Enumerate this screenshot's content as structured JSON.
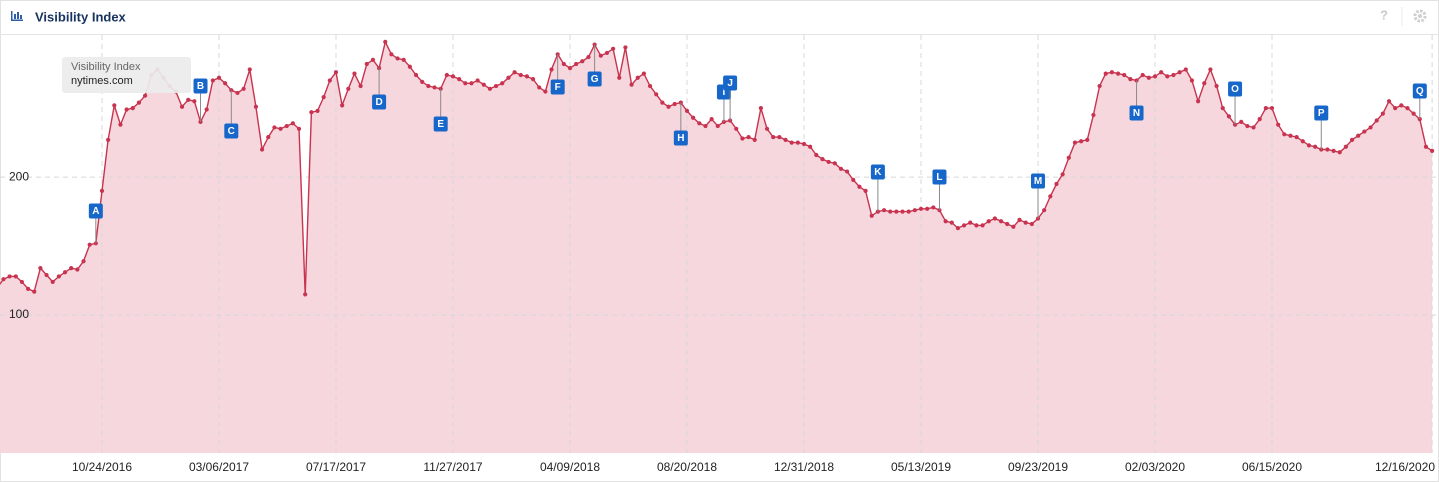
{
  "toolbar": {
    "help": "?"
  },
  "chart_data": {
    "type": "line",
    "title": "Visibility Index",
    "categories": [
      null,
      null,
      null,
      null,
      null,
      null,
      null,
      null,
      null,
      null,
      null,
      null,
      null,
      null,
      null,
      null,
      null,
      "10/24/2016",
      null,
      null,
      null,
      null,
      null,
      null,
      null,
      null,
      null,
      null,
      null,
      null,
      null,
      null,
      null,
      null,
      null,
      null,
      "03/06/2017",
      null,
      null,
      null,
      null,
      null,
      null,
      null,
      null,
      null,
      null,
      null,
      null,
      null,
      null,
      null,
      null,
      null,
      null,
      "07/17/2017",
      null,
      null,
      null,
      null,
      null,
      null,
      null,
      null,
      null,
      null,
      null,
      null,
      null,
      null,
      null,
      null,
      null,
      null,
      "11/27/2017",
      null,
      null,
      null,
      null,
      null,
      null,
      null,
      null,
      null,
      null,
      null,
      null,
      null,
      null,
      null,
      null,
      null,
      null,
      "04/09/2018",
      null,
      null,
      null,
      null,
      null,
      null,
      null,
      null,
      null,
      null,
      null,
      null,
      null,
      null,
      null,
      null,
      null,
      null,
      "08/20/2018",
      null,
      null,
      null,
      null,
      null,
      null,
      null,
      null,
      null,
      null,
      null,
      null,
      null,
      null,
      null,
      null,
      null,
      null,
      "12/31/2018",
      null,
      null,
      null,
      null,
      null,
      null,
      null,
      null,
      null,
      null,
      null,
      null,
      null,
      null,
      null,
      null,
      null,
      null,
      "05/13/2019",
      null,
      null,
      null,
      null,
      null,
      null,
      null,
      null,
      null,
      null,
      null,
      null,
      null,
      null,
      null,
      null,
      null,
      null,
      "09/23/2019",
      null,
      null,
      null,
      null,
      null,
      null,
      null,
      null,
      null,
      null,
      null,
      null,
      null,
      null,
      null,
      null,
      null,
      null,
      "02/03/2020",
      null,
      null,
      null,
      null,
      null,
      null,
      null,
      null,
      null,
      null,
      null,
      null,
      null,
      null,
      null,
      null,
      null,
      null,
      "06/15/2020",
      null,
      null,
      null,
      null,
      null,
      null,
      null,
      null,
      null,
      null,
      null,
      null,
      null,
      null,
      null,
      null,
      null,
      null,
      null,
      null,
      null,
      null,
      null,
      null,
      null,
      "12/16/2020"
    ],
    "series": [
      {
        "name": "nytimes.com",
        "color": "#c8334f",
        "fill": "#f5d7dd",
        "values": [
          120,
          126,
          128,
          128,
          124,
          119,
          117,
          134,
          129,
          124,
          128,
          131,
          134,
          133,
          139,
          151,
          152,
          190,
          227,
          252,
          238,
          249,
          250,
          254,
          259,
          274,
          278,
          272,
          266,
          262,
          251,
          256,
          255,
          240,
          249,
          270,
          272,
          268,
          263,
          261,
          264,
          278,
          251,
          220,
          229,
          236,
          235,
          237,
          239,
          235,
          115,
          247,
          248,
          258,
          270,
          276,
          252,
          264,
          275,
          266,
          282,
          285,
          279,
          298,
          289,
          286,
          285,
          280,
          274,
          269,
          266,
          265,
          264,
          274,
          273,
          271,
          268,
          268,
          270,
          267,
          264,
          266,
          268,
          272,
          276,
          274,
          273,
          271,
          265,
          262,
          278,
          289,
          282,
          279,
          282,
          284,
          287,
          296,
          288,
          290,
          293,
          272,
          294,
          267,
          272,
          275,
          266,
          260,
          254,
          251,
          253,
          254,
          248,
          243,
          239,
          237,
          242,
          237,
          240,
          241,
          235,
          228,
          229,
          227,
          250,
          235,
          229,
          229,
          227,
          225,
          225,
          224,
          222,
          216,
          213,
          211,
          210,
          206,
          204,
          198,
          193,
          190,
          172,
          175,
          176,
          175,
          175,
          175,
          175,
          176,
          177,
          177,
          178,
          176,
          168,
          167,
          163,
          165,
          167,
          165,
          165,
          168,
          170,
          168,
          166,
          164,
          169,
          167,
          166,
          170,
          176,
          186,
          195,
          202,
          214,
          225,
          226,
          227,
          245,
          266,
          275,
          276,
          275,
          274,
          271,
          270,
          274,
          272,
          273,
          276,
          273,
          274,
          276,
          278,
          270,
          255,
          268,
          278,
          266,
          250,
          244,
          238,
          240,
          237,
          236,
          242,
          250,
          250,
          238,
          231,
          230,
          229,
          226,
          223,
          222,
          220,
          220,
          219,
          218,
          222,
          227,
          230,
          233,
          236,
          241,
          246,
          255,
          250,
          252,
          250,
          246,
          242,
          222,
          219
        ]
      }
    ],
    "ylim": [
      0,
      303
    ],
    "yticks": [
      100,
      200
    ],
    "grid": true,
    "annotations": [
      "A",
      "B",
      "C",
      "D",
      "E",
      "F",
      "G",
      "H",
      "I",
      "J",
      "K",
      "L",
      "M",
      "N",
      "O",
      "P",
      "Q"
    ]
  }
}
